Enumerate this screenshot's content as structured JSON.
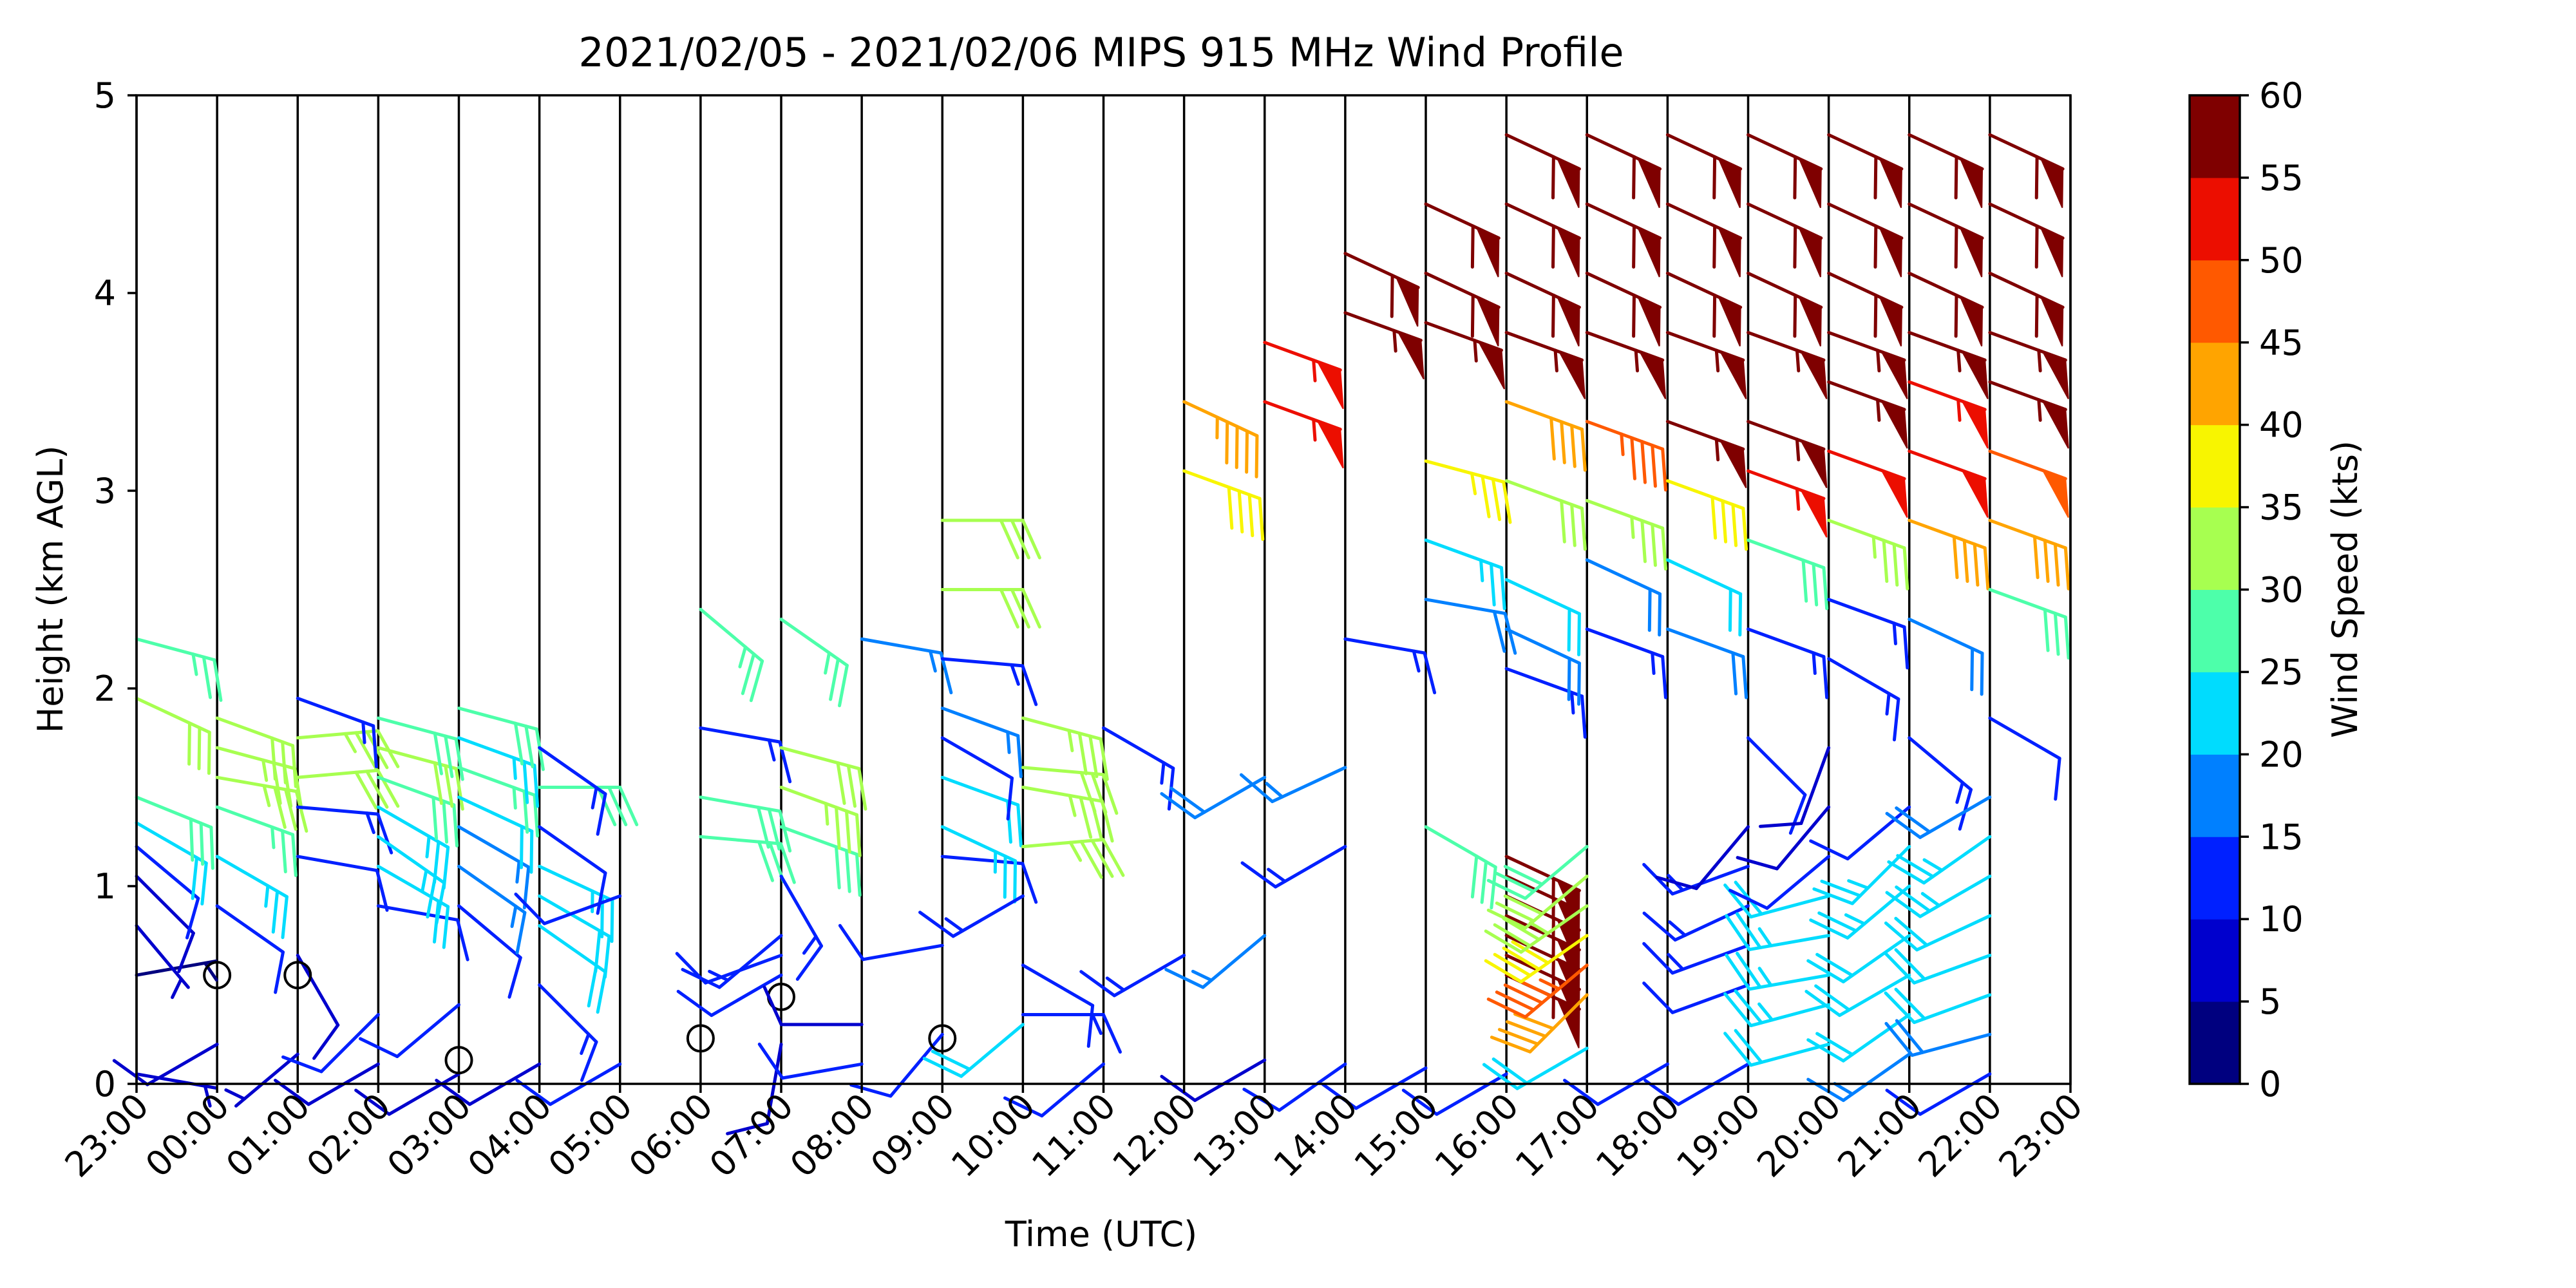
{
  "chart_data": {
    "type": "wind-barb-profile",
    "title": "2021/02/05 - 2021/02/06 MIPS 915 MHz Wind Profile",
    "xlabel": "Time (UTC)",
    "ylabel": "Height (km AGL)",
    "xticks": [
      "23:00",
      "00:00",
      "01:00",
      "02:00",
      "03:00",
      "04:00",
      "05:00",
      "06:00",
      "07:00",
      "08:00",
      "09:00",
      "10:00",
      "11:00",
      "12:00",
      "13:00",
      "14:00",
      "15:00",
      "16:00",
      "17:00",
      "18:00",
      "19:00",
      "20:00",
      "21:00",
      "22:00",
      "23:00"
    ],
    "yticks": [
      "0",
      "1",
      "2",
      "3",
      "4",
      "5"
    ],
    "ylim": [
      0,
      5
    ],
    "colorbar": {
      "label": "Wind Speed (kts)",
      "ticks": [
        "0",
        "5",
        "10",
        "15",
        "20",
        "25",
        "30",
        "35",
        "40",
        "45",
        "50",
        "55",
        "60"
      ],
      "colors": [
        "#00007f",
        "#0000cd",
        "#0020ff",
        "#0080ff",
        "#00dcfe",
        "#4dffaa",
        "#a7ff50",
        "#f8f500",
        "#ffa400",
        "#ff5900",
        "#ec0e00",
        "#7f0000"
      ]
    },
    "columns": [
      {
        "time": "23:00",
        "barbs": [
          [
            0.05,
            5,
            100
          ],
          [
            0.55,
            4,
            80
          ],
          [
            0.8,
            6,
            140
          ],
          [
            1.05,
            8,
            135
          ],
          [
            1.2,
            10,
            130
          ],
          [
            1.32,
            20,
            120
          ],
          [
            1.45,
            28,
            112
          ],
          [
            1.95,
            31,
            115
          ],
          [
            2.25,
            27,
            105
          ]
        ]
      },
      {
        "time": "00:00",
        "calm": [
          0.55
        ],
        "barbs": [
          [
            0.2,
            9,
            240
          ],
          [
            0.9,
            10,
            125
          ],
          [
            1.15,
            23,
            120
          ],
          [
            1.4,
            26,
            110
          ],
          [
            1.55,
            34,
            100
          ],
          [
            1.7,
            33,
            105
          ],
          [
            1.85,
            30,
            110
          ]
        ]
      },
      {
        "time": "01:00",
        "calm": [
          0.55
        ],
        "barbs": [
          [
            0.15,
            6,
            230
          ],
          [
            0.65,
            9,
            150
          ],
          [
            1.15,
            11,
            100
          ],
          [
            1.4,
            14,
            95
          ],
          [
            1.55,
            30,
            85
          ],
          [
            1.75,
            34,
            85
          ],
          [
            1.95,
            14,
            110
          ]
        ]
      },
      {
        "time": "02:00",
        "barbs": [
          [
            0.1,
            9,
            240
          ],
          [
            0.35,
            10,
            225
          ],
          [
            0.9,
            11,
            100
          ],
          [
            1.1,
            22,
            120
          ],
          [
            1.25,
            23,
            125
          ],
          [
            1.4,
            23,
            120
          ],
          [
            1.55,
            28,
            110
          ],
          [
            1.7,
            31,
            105
          ],
          [
            1.85,
            29,
            105
          ]
        ]
      },
      {
        "time": "03:00",
        "calm": [
          0.12
        ],
        "barbs": [
          [
            0.05,
            8,
            240
          ],
          [
            0.4,
            11,
            230
          ],
          [
            0.9,
            12,
            130
          ],
          [
            1.1,
            15,
            125
          ],
          [
            1.3,
            17,
            120
          ],
          [
            1.45,
            20,
            115
          ],
          [
            1.6,
            26,
            110
          ],
          [
            1.75,
            24,
            110
          ],
          [
            1.9,
            29,
            105
          ]
        ]
      },
      {
        "time": "04:00",
        "barbs": [
          [
            0.1,
            9,
            240
          ],
          [
            0.5,
            14,
            135
          ],
          [
            0.8,
            20,
            125
          ],
          [
            0.95,
            22,
            120
          ],
          [
            1.1,
            24,
            115
          ],
          [
            1.3,
            10,
            125
          ],
          [
            1.5,
            29,
            90
          ],
          [
            1.7,
            13,
            125
          ]
        ]
      },
      {
        "time": "05:00",
        "barbs": [
          [
            0.1,
            10,
            240
          ],
          [
            0.95,
            12,
            250
          ]
        ]
      },
      {
        "time": "06:00",
        "calm": [
          0.23
        ],
        "barbs": [
          [
            1.25,
            28,
            95
          ],
          [
            1.45,
            29,
            100
          ],
          [
            1.8,
            14,
            100
          ],
          [
            2.4,
            25,
            130
          ]
        ]
      },
      {
        "time": "07:00",
        "calm": [
          0.44
        ],
        "barbs": [
          [
            0.2,
            9,
            190
          ],
          [
            0.55,
            11,
            240
          ],
          [
            0.65,
            12,
            250
          ],
          [
            0.75,
            13,
            230
          ],
          [
            1.05,
            14,
            150
          ],
          [
            1.3,
            28,
            110
          ],
          [
            1.5,
            33,
            110
          ],
          [
            1.7,
            31,
            105
          ],
          [
            2.35,
            25,
            125
          ]
        ]
      },
      {
        "time": "08:00",
        "barbs": [
          [
            0.1,
            10,
            260
          ],
          [
            0.3,
            8,
            270
          ],
          [
            2.25,
            16,
            100
          ]
        ]
      },
      {
        "time": "09:00",
        "calm": [
          0.23
        ],
        "barbs": [
          [
            0.25,
            10,
            220
          ],
          [
            0.7,
            11,
            260
          ],
          [
            1.15,
            10,
            95
          ],
          [
            1.3,
            24,
            115
          ],
          [
            1.55,
            20,
            110
          ],
          [
            1.75,
            11,
            120
          ],
          [
            1.9,
            17,
            110
          ],
          [
            2.15,
            14,
            95
          ],
          [
            2.5,
            30,
            90
          ],
          [
            2.85,
            31,
            90
          ]
        ]
      },
      {
        "time": "10:00",
        "barbs": [
          [
            0.3,
            22,
            230
          ],
          [
            0.35,
            14,
            90
          ],
          [
            0.6,
            12,
            120
          ],
          [
            0.95,
            14,
            240
          ],
          [
            1.2,
            33,
            85
          ],
          [
            1.5,
            34,
            100
          ],
          [
            1.6,
            32,
            95
          ],
          [
            1.85,
            34,
            105
          ]
        ]
      },
      {
        "time": "11:00",
        "barbs": [
          [
            0.1,
            12,
            230
          ],
          [
            1.8,
            14,
            120
          ]
        ]
      },
      {
        "time": "12:00",
        "barbs": [
          [
            0.65,
            13,
            240
          ],
          [
            3.1,
            38,
            110
          ],
          [
            3.45,
            43,
            115
          ]
        ]
      },
      {
        "time": "13:00",
        "barbs": [
          [
            0.12,
            9,
            240
          ],
          [
            0.75,
            16,
            230
          ],
          [
            1.55,
            18,
            240
          ],
          [
            3.45,
            53,
            110
          ],
          [
            3.75,
            54,
            110
          ]
        ]
      },
      {
        "time": "14:00",
        "barbs": [
          [
            0.1,
            11,
            235
          ],
          [
            1.2,
            13,
            240
          ],
          [
            1.6,
            17,
            245
          ],
          [
            2.25,
            14,
            100
          ],
          [
            3.9,
            56,
            110
          ],
          [
            4.2,
            58,
            115
          ]
        ]
      },
      {
        "time": "15:00",
        "barbs": [
          [
            0.08,
            11,
            240
          ],
          [
            1.3,
            29,
            120
          ],
          [
            2.45,
            19,
            100
          ],
          [
            2.75,
            24,
            110
          ],
          [
            3.15,
            37,
            105
          ],
          [
            3.85,
            57,
            110
          ],
          [
            4.1,
            58,
            115
          ],
          [
            4.45,
            58,
            115
          ]
        ]
      },
      {
        "time": "16:00",
        "barbs": [
          [
            0.05,
            11,
            240
          ],
          [
            0.55,
            57,
            115
          ],
          [
            0.65,
            57,
            115
          ],
          [
            0.75,
            57,
            115
          ],
          [
            0.85,
            57,
            115
          ],
          [
            0.95,
            57,
            115
          ],
          [
            1.05,
            57,
            115
          ],
          [
            1.15,
            57,
            115
          ],
          [
            2.1,
            14,
            110
          ],
          [
            2.3,
            19,
            115
          ],
          [
            2.55,
            22,
            115
          ],
          [
            3.05,
            31,
            110
          ],
          [
            3.45,
            41,
            110
          ],
          [
            3.8,
            57,
            110
          ],
          [
            4.1,
            58,
            115
          ],
          [
            4.45,
            58,
            115
          ],
          [
            4.8,
            58,
            115
          ]
        ]
      },
      {
        "time": "17:00",
        "barbs": [
          [
            0.18,
            22,
            240
          ],
          [
            0.45,
            42,
            225
          ],
          [
            0.6,
            45,
            230
          ],
          [
            0.75,
            38,
            235
          ],
          [
            0.9,
            34,
            235
          ],
          [
            1.05,
            32,
            230
          ],
          [
            1.2,
            29,
            230
          ],
          [
            2.3,
            14,
            110
          ],
          [
            2.65,
            19,
            115
          ],
          [
            2.95,
            34,
            110
          ],
          [
            3.35,
            45,
            110
          ],
          [
            3.8,
            57,
            110
          ],
          [
            4.1,
            58,
            115
          ],
          [
            4.45,
            58,
            115
          ],
          [
            4.8,
            58,
            115
          ]
        ]
      },
      {
        "time": "18:00",
        "barbs": [
          [
            0.1,
            12,
            240
          ],
          [
            2.3,
            19,
            110
          ],
          [
            2.65,
            22,
            115
          ],
          [
            3.05,
            39,
            110
          ],
          [
            3.35,
            57,
            110
          ],
          [
            3.8,
            57,
            110
          ],
          [
            4.1,
            58,
            115
          ],
          [
            4.45,
            58,
            115
          ],
          [
            4.8,
            58,
            115
          ]
        ]
      },
      {
        "time": "19:00",
        "barbs": [
          [
            0.1,
            11,
            240
          ],
          [
            0.5,
            12,
            250
          ],
          [
            0.7,
            13,
            250
          ],
          [
            0.9,
            13,
            245
          ],
          [
            1.1,
            13,
            250
          ],
          [
            1.3,
            8,
            220
          ],
          [
            1.75,
            11,
            135
          ],
          [
            2.3,
            14,
            110
          ],
          [
            2.75,
            29,
            110
          ],
          [
            3.1,
            53,
            110
          ],
          [
            3.35,
            57,
            110
          ],
          [
            3.8,
            57,
            110
          ],
          [
            4.1,
            58,
            115
          ],
          [
            4.45,
            58,
            115
          ],
          [
            4.8,
            58,
            115
          ]
        ]
      },
      {
        "time": "20:00",
        "barbs": [
          [
            0.2,
            22,
            255
          ],
          [
            0.4,
            23,
            255
          ],
          [
            0.55,
            24,
            260
          ],
          [
            0.75,
            24,
            260
          ],
          [
            0.95,
            20,
            255
          ],
          [
            1.15,
            10,
            230
          ],
          [
            1.4,
            9,
            220
          ],
          [
            1.7,
            9,
            200
          ],
          [
            2.15,
            13,
            120
          ],
          [
            2.45,
            13,
            110
          ],
          [
            2.85,
            33,
            110
          ],
          [
            3.2,
            50,
            110
          ],
          [
            3.55,
            57,
            110
          ],
          [
            3.8,
            57,
            110
          ],
          [
            4.1,
            58,
            115
          ],
          [
            4.45,
            58,
            115
          ],
          [
            4.8,
            58,
            115
          ]
        ]
      },
      {
        "time": "21:00",
        "barbs": [
          [
            0.15,
            17,
            235
          ],
          [
            0.35,
            20,
            235
          ],
          [
            0.55,
            22,
            240
          ],
          [
            0.75,
            21,
            235
          ],
          [
            1.0,
            23,
            230
          ],
          [
            1.2,
            24,
            225
          ],
          [
            1.4,
            10,
            230
          ],
          [
            1.75,
            14,
            130
          ],
          [
            2.35,
            18,
            115
          ],
          [
            2.85,
            42,
            110
          ],
          [
            3.2,
            51,
            110
          ],
          [
            3.55,
            53,
            110
          ],
          [
            3.8,
            57,
            110
          ],
          [
            4.1,
            58,
            115
          ],
          [
            4.45,
            58,
            115
          ],
          [
            4.8,
            58,
            115
          ]
        ]
      },
      {
        "time": "22:00",
        "barbs": [
          [
            0.05,
            11,
            240
          ],
          [
            0.25,
            19,
            255
          ],
          [
            0.45,
            20,
            250
          ],
          [
            0.65,
            21,
            250
          ],
          [
            0.85,
            22,
            245
          ],
          [
            1.05,
            24,
            240
          ],
          [
            1.25,
            23,
            235
          ],
          [
            1.45,
            18,
            240
          ],
          [
            1.85,
            10,
            120
          ],
          [
            2.5,
            29,
            110
          ],
          [
            2.85,
            42,
            110
          ],
          [
            3.2,
            49,
            110
          ],
          [
            3.55,
            57,
            110
          ],
          [
            3.8,
            57,
            110
          ],
          [
            4.1,
            58,
            115
          ],
          [
            4.45,
            58,
            115
          ],
          [
            4.8,
            58,
            115
          ]
        ]
      },
      {
        "time": "23:00",
        "barbs": []
      }
    ]
  }
}
